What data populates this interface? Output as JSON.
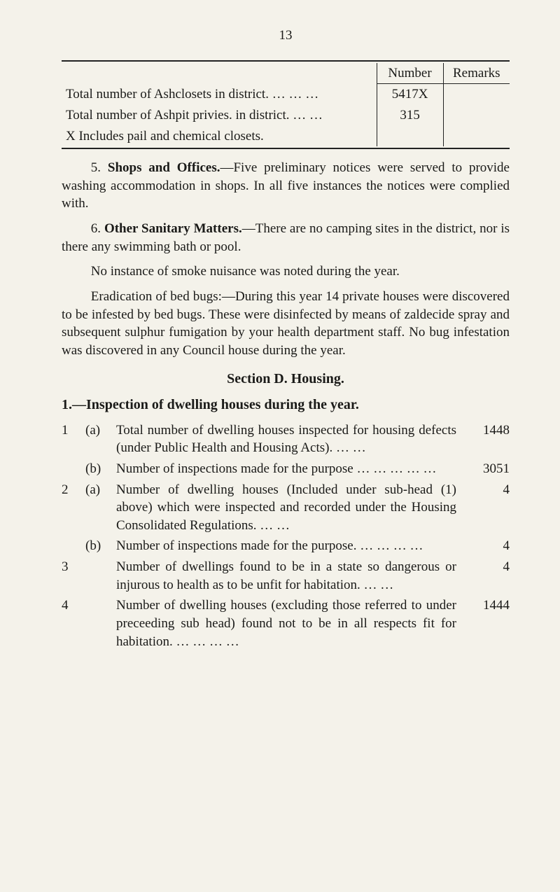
{
  "page_number": "13",
  "top_table": {
    "headers": {
      "number": "Number",
      "remarks": "Remarks"
    },
    "rows": [
      {
        "label": "Total number of Ashclosets in district.   …   …   …",
        "number": "5417X",
        "remarks": ""
      },
      {
        "label": "Total number of Ashpit privies. in district.   …   …",
        "number": "315",
        "remarks": ""
      },
      {
        "label": "X Includes pail and chemical closets.",
        "number": "",
        "remarks": ""
      }
    ]
  },
  "paragraphs": {
    "p5_label": "5.  ",
    "p5_bold": "Shops and Offices.",
    "p5_rest": "—Five preliminary notices were served to provide washing accommodation in shops.  In all five instances the notices were complied with.",
    "p6_label": "6.  ",
    "p6_bold": "Other Sanitary Matters.",
    "p6_rest": "—There are no camping sites in the district, nor is there any swimming bath or pool.",
    "smoke": "No instance of smoke nuisance was noted during the year.",
    "erad": "Eradication of bed bugs:—During this year 14 private houses were discovered to be infested by bed bugs.  These were disinfected by means of zaldecide spray and subsequent sulphur fumigation by your health department staff.  No bug infestation was discovered in any Council house during the year."
  },
  "section_d_title": "Section D.  Housing.",
  "inspection_title": "1.—Inspection of dwelling houses during the year.",
  "items": [
    {
      "num": "1",
      "letter": "(a)",
      "text": "Total number of dwelling houses inspected for housing defects (under Public Health and Housing Acts).          …     …",
      "value": "1448"
    },
    {
      "num": "",
      "letter": "(b)",
      "text": "Number of inspections made for the pur­pose     …     …     …     …     …",
      "value": "3051"
    },
    {
      "num": "2",
      "letter": "(a)",
      "text": "Number of dwelling houses (Included un­der sub-head (1) above) which were inspected and recorded under the Housing Consolidated Regulations.     …     …",
      "value": "4"
    },
    {
      "num": "",
      "letter": "(b)",
      "text": "Number of inspections made for the pur­pose.          …     …     …     …",
      "value": "4"
    },
    {
      "num": "3",
      "letter": "",
      "text": "Number of dwellings found to be in a state so dangerous or injurous to health as to be unfit for habitation.     …     …",
      "value": "4"
    },
    {
      "num": "4",
      "letter": "",
      "text": "Number of dwelling houses (excluding those referred to under preceeding sub head) found not to be in all respects fit for habitation.     …     …     …     …",
      "value": "1444"
    }
  ]
}
